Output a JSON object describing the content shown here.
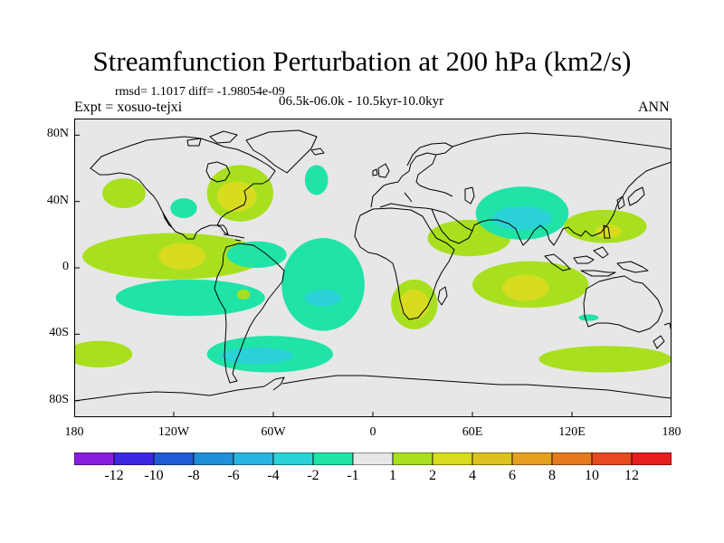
{
  "title": "Streamfunction Perturbation at 200 hPa (km2/s)",
  "stats": "rmsd= 1.1017  diff= -1.98054e-09",
  "experiment": "Expt = xosuo-tejxi",
  "subtitle": "06.5k-06.0k - 10.5kyr-10.0kyr",
  "season": "ANN",
  "axes": {
    "y_ticks": [
      {
        "label": "80N",
        "lat": 80
      },
      {
        "label": "40N",
        "lat": 40
      },
      {
        "label": "0",
        "lat": 0
      },
      {
        "label": "40S",
        "lat": -40
      },
      {
        "label": "80S",
        "lat": -80
      }
    ],
    "x_ticks": [
      {
        "label": "180",
        "lon": -180
      },
      {
        "label": "120W",
        "lon": -120
      },
      {
        "label": "60W",
        "lon": -60
      },
      {
        "label": "0",
        "lon": 0
      },
      {
        "label": "60E",
        "lon": 60
      },
      {
        "label": "120E",
        "lon": 120
      },
      {
        "label": "180",
        "lon": 180
      }
    ],
    "lat_range": [
      -90,
      90
    ],
    "lon_range": [
      -180,
      180
    ]
  },
  "colorbar": {
    "colors": [
      "#8a1ee0",
      "#3c28e0",
      "#1f5ad7",
      "#1f8fd7",
      "#28b4e0",
      "#2ad2d7",
      "#20e3a8",
      "#e7e7e7",
      "#a8e01f",
      "#d7dc1e",
      "#dcc21e",
      "#e6a01e",
      "#e6781e",
      "#e64a1e",
      "#e61e1e"
    ],
    "labels": [
      "-12",
      "-10",
      "-8",
      "-6",
      "-4",
      "-2",
      "-1",
      "1",
      "2",
      "4",
      "6",
      "8",
      "10",
      "12"
    ]
  },
  "chart_data": {
    "type": "map",
    "projection": "cylindrical-equidistant",
    "background_value_range": [
      -1,
      1
    ],
    "regions": [
      {
        "name": "north-pacific-positive",
        "lon": -150,
        "lat": 45,
        "rlon": 13,
        "rlat": 9,
        "level": 8
      },
      {
        "name": "hudson-bay-positive",
        "lon": -80,
        "lat": 45,
        "rlon": 20,
        "rlat": 17,
        "level": 8
      },
      {
        "name": "hudson-bay-core",
        "lon": -82,
        "lat": 43,
        "rlon": 12,
        "rlat": 9,
        "level": 9
      },
      {
        "name": "north-atlantic-negative",
        "lon": -34,
        "lat": 53,
        "rlon": 7,
        "rlat": 9,
        "level": 6
      },
      {
        "name": "eastern-pacific-negative",
        "lon": -114,
        "lat": 36,
        "rlon": 8,
        "rlat": 6,
        "level": 6
      },
      {
        "name": "tropical-pacific-positive",
        "lon": -120,
        "lat": 7,
        "rlon": 55,
        "rlat": 14,
        "level": 8
      },
      {
        "name": "tropical-pacific-core",
        "lon": -115,
        "lat": 7,
        "rlon": 14,
        "rlat": 8,
        "level": 9
      },
      {
        "name": "central-america-negative",
        "lon": -70,
        "lat": 8,
        "rlon": 18,
        "rlat": 8,
        "level": 6
      },
      {
        "name": "south-pacific-negative",
        "lon": -110,
        "lat": -18,
        "rlon": 45,
        "rlat": 11,
        "level": 6
      },
      {
        "name": "south-america-positive",
        "lon": -78,
        "lat": -16,
        "rlon": 4,
        "rlat": 3,
        "level": 8
      },
      {
        "name": "south-atlantic-negative",
        "lon": -30,
        "lat": -10,
        "rlon": 25,
        "rlat": 28,
        "level": 6
      },
      {
        "name": "south-atlantic-core",
        "lon": -30,
        "lat": -18,
        "rlon": 11,
        "rlat": 5,
        "level": 5
      },
      {
        "name": "southern-africa-positive",
        "lon": 25,
        "lat": -22,
        "rlon": 14,
        "rlat": 15,
        "level": 8
      },
      {
        "name": "southern-africa-core",
        "lon": 25,
        "lat": -22,
        "rlon": 9,
        "rlat": 9,
        "level": 9
      },
      {
        "name": "south-of-cape-negative",
        "lon": -62,
        "lat": -52,
        "rlon": 38,
        "rlat": 11,
        "level": 6
      },
      {
        "name": "south-of-cape-core",
        "lon": -70,
        "lat": -53,
        "rlon": 22,
        "rlat": 5,
        "level": 5
      },
      {
        "name": "south-pacific-positive",
        "lon": -165,
        "lat": -52,
        "rlon": 20,
        "rlat": 8,
        "level": 8
      },
      {
        "name": "arabia-positive",
        "lon": 58,
        "lat": 18,
        "rlon": 25,
        "rlat": 11,
        "level": 8
      },
      {
        "name": "central-asia-negative",
        "lon": 90,
        "lat": 33,
        "rlon": 28,
        "rlat": 16,
        "level": 6
      },
      {
        "name": "central-asia-core",
        "lon": 90,
        "lat": 30,
        "rlon": 18,
        "rlat": 7,
        "level": 5
      },
      {
        "name": "east-asia-positive",
        "lon": 140,
        "lat": 25,
        "rlon": 25,
        "rlat": 10,
        "level": 8
      },
      {
        "name": "east-asia-core",
        "lon": 142,
        "lat": 22,
        "rlon": 8,
        "rlat": 4,
        "level": 9
      },
      {
        "name": "indian-ocean-positive",
        "lon": 95,
        "lat": -10,
        "rlon": 35,
        "rlat": 14,
        "level": 8
      },
      {
        "name": "indian-ocean-core",
        "lon": 92,
        "lat": -12,
        "rlon": 14,
        "rlat": 8,
        "level": 9
      },
      {
        "name": "southern-ocean-positive",
        "lon": 140,
        "lat": -55,
        "rlon": 40,
        "rlat": 8,
        "level": 8
      },
      {
        "name": "australia-negative",
        "lon": 130,
        "lat": -30,
        "rlon": 6,
        "rlat": 2,
        "level": 6
      }
    ]
  }
}
